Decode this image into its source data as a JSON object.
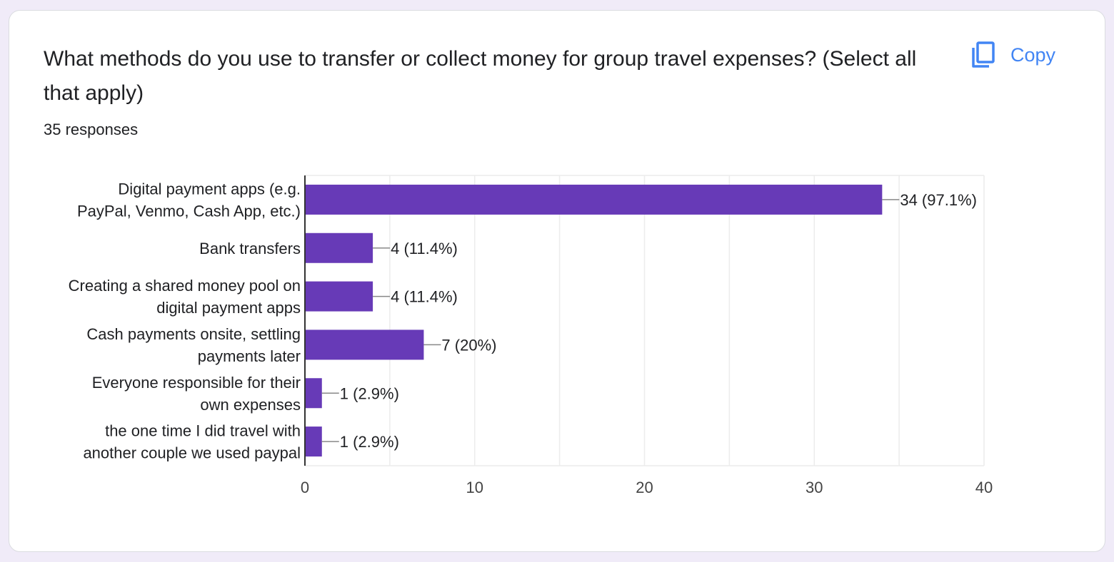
{
  "question": {
    "title": "What methods do you use to transfer or collect money for group travel expenses? (Select all that apply)",
    "responses": "35 responses"
  },
  "actions": {
    "copy_label": "Copy",
    "copy_icon": "copy-icon"
  },
  "colors": {
    "bar": "#673ab7",
    "accent": "#4285f4"
  },
  "chart_data": {
    "type": "bar",
    "orientation": "horizontal",
    "categories": [
      [
        "Digital payment apps (e.g.",
        "PayPal, Venmo, Cash App, etc.)"
      ],
      [
        "Bank transfers"
      ],
      [
        "Creating a shared money pool on",
        "digital payment apps"
      ],
      [
        "Cash payments onsite, settling",
        "payments later"
      ],
      [
        "Everyone responsible for their",
        "own expenses"
      ],
      [
        "the one time I did travel with",
        "another couple we used paypal"
      ]
    ],
    "values": [
      34,
      4,
      4,
      7,
      1,
      1
    ],
    "data_labels": [
      "34 (97.1%)",
      "4 (11.4%)",
      "4 (11.4%)",
      "7 (20%)",
      "1 (2.9%)",
      "1 (2.9%)"
    ],
    "xlim": [
      0,
      40
    ],
    "xticks": [
      0,
      10,
      20,
      30,
      40
    ],
    "grid": true,
    "legend": "none"
  }
}
